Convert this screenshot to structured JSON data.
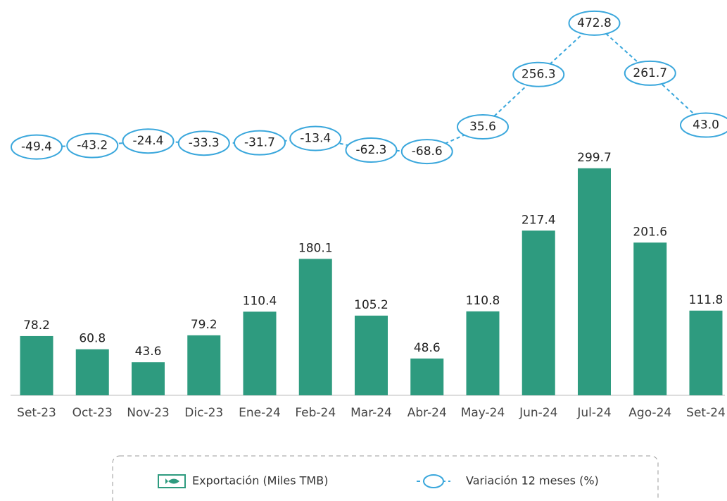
{
  "chart_data": {
    "type": "bar-line",
    "categories": [
      "Set-23",
      "Oct-23",
      "Nov-23",
      "Dic-23",
      "Ene-24",
      "Feb-24",
      "Mar-24",
      "Abr-24",
      "May-24",
      "Jun-24",
      "Jul-24",
      "Ago-24",
      "Set-24"
    ],
    "series": [
      {
        "name": "Exportación (Miles TMB)",
        "type": "bar",
        "color": "#2e9b7f",
        "values": [
          78.2,
          60.8,
          43.6,
          79.2,
          110.4,
          180.1,
          105.2,
          48.6,
          110.8,
          217.4,
          299.7,
          201.6,
          111.8
        ]
      },
      {
        "name": "Variación 12 meses (%)",
        "type": "line",
        "axis": "y2",
        "color": "#3aa7dc",
        "values": [
          -49.4,
          -43.2,
          -24.4,
          -33.3,
          -31.7,
          -13.4,
          -62.3,
          -68.6,
          35.6,
          256.3,
          472.8,
          261.7,
          43.0
        ],
        "value_labels": [
          "-49.4",
          "-43.2",
          "-24.4",
          "-33.3",
          "-31.7",
          "-13.4",
          "-62.3",
          "-68.6",
          "35.6",
          "256.3",
          "472.8",
          "261.7",
          "43.0"
        ]
      }
    ],
    "ylim": [
      0,
      400
    ],
    "y2lim": [
      -110,
      520
    ],
    "legend": "bottom"
  }
}
